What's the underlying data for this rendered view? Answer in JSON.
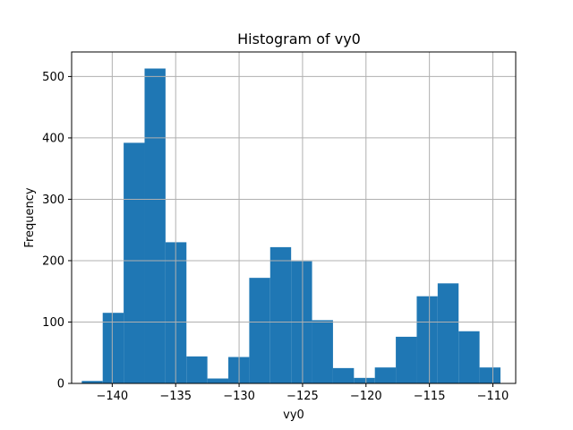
{
  "chart_data": {
    "type": "bar",
    "title": "Histogram of vy0",
    "xlabel": "vy0",
    "ylabel": "Frequency",
    "xlim": [
      -143.2,
      -108.2
    ],
    "ylim": [
      0,
      540
    ],
    "grid": true,
    "color": "#1f77b4",
    "x_ticks": [
      -140,
      -135,
      -130,
      -125,
      -120,
      -115,
      -110
    ],
    "x_tick_labels": [
      "−140",
      "−135",
      "−130",
      "−125",
      "−120",
      "−115",
      "−110"
    ],
    "y_ticks": [
      0,
      100,
      200,
      300,
      400,
      500
    ],
    "y_tick_labels": [
      "0",
      "100",
      "200",
      "300",
      "400",
      "500"
    ],
    "bins": [
      {
        "x0": -142.4,
        "x1": -140.75,
        "count": 4
      },
      {
        "x0": -140.75,
        "x1": -139.1,
        "count": 115
      },
      {
        "x0": -139.1,
        "x1": -137.45,
        "count": 392
      },
      {
        "x0": -137.45,
        "x1": -135.8,
        "count": 513
      },
      {
        "x0": -135.8,
        "x1": -134.15,
        "count": 230
      },
      {
        "x0": -134.15,
        "x1": -132.5,
        "count": 44
      },
      {
        "x0": -132.5,
        "x1": -130.85,
        "count": 8
      },
      {
        "x0": -130.85,
        "x1": -129.2,
        "count": 43
      },
      {
        "x0": -129.2,
        "x1": -127.55,
        "count": 172
      },
      {
        "x0": -127.55,
        "x1": -125.9,
        "count": 222
      },
      {
        "x0": -125.9,
        "x1": -124.25,
        "count": 199
      },
      {
        "x0": -124.25,
        "x1": -122.6,
        "count": 103
      },
      {
        "x0": -122.6,
        "x1": -120.95,
        "count": 25
      },
      {
        "x0": -120.95,
        "x1": -119.3,
        "count": 9
      },
      {
        "x0": -119.3,
        "x1": -117.65,
        "count": 26
      },
      {
        "x0": -117.65,
        "x1": -116.0,
        "count": 76
      },
      {
        "x0": -116.0,
        "x1": -114.35,
        "count": 142
      },
      {
        "x0": -114.35,
        "x1": -112.7,
        "count": 163
      },
      {
        "x0": -112.7,
        "x1": -111.05,
        "count": 85
      },
      {
        "x0": -111.05,
        "x1": -109.4,
        "count": 26
      }
    ]
  }
}
